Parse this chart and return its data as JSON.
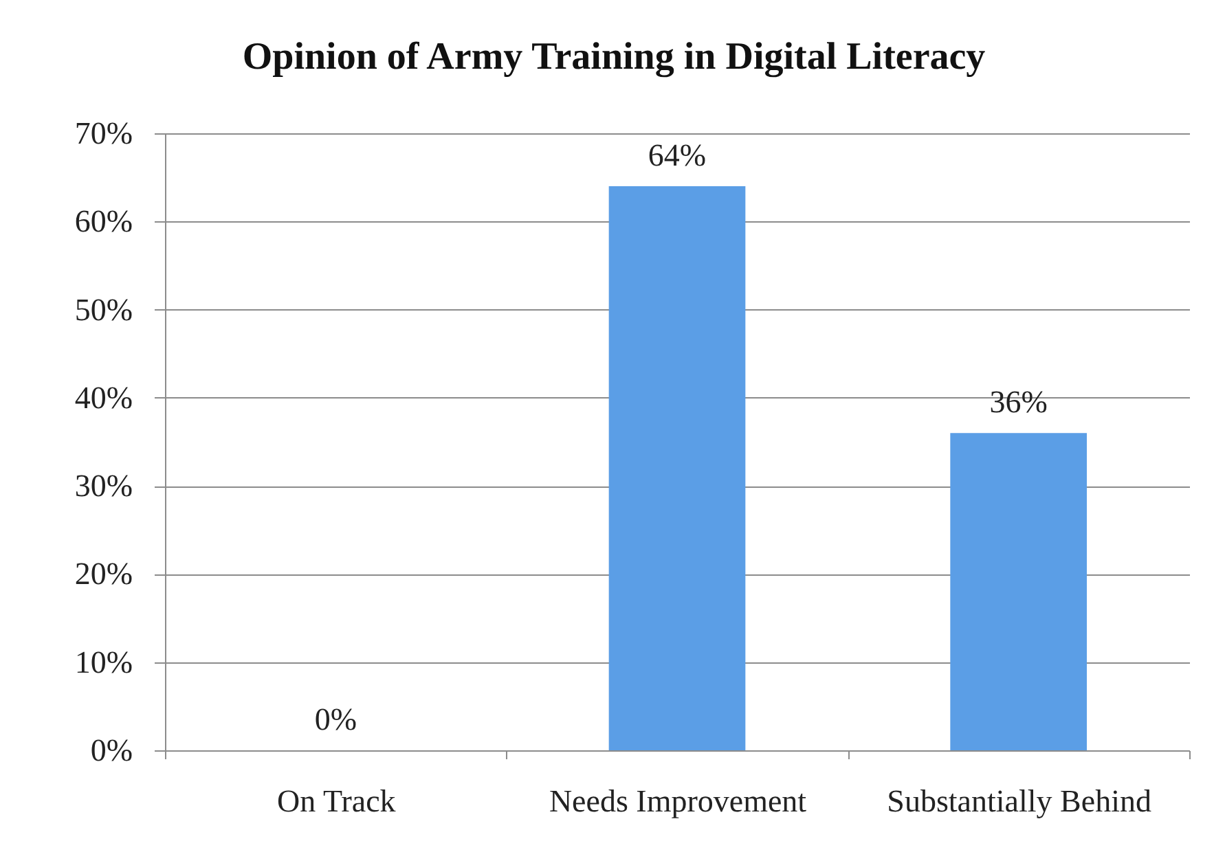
{
  "chart_data": {
    "type": "bar",
    "title": "Opinion of Army Training in Digital Literacy",
    "categories": [
      "On Track",
      "Needs Improvement",
      "Substantially Behind"
    ],
    "values": [
      0,
      64,
      36
    ],
    "color": "#5b9ee6",
    "value_labels": [
      "0%",
      "64%",
      "36%"
    ],
    "ylim": [
      0,
      70
    ],
    "yticks": [
      {
        "value": 0,
        "label": "0%"
      },
      {
        "value": 10,
        "label": "10%"
      },
      {
        "value": 20,
        "label": "20%"
      },
      {
        "value": 30,
        "label": "30%"
      },
      {
        "value": 40,
        "label": "40%"
      },
      {
        "value": 50,
        "label": "50%"
      },
      {
        "value": 60,
        "label": "60%"
      },
      {
        "value": 70,
        "label": "70%"
      }
    ],
    "grid": "y"
  }
}
